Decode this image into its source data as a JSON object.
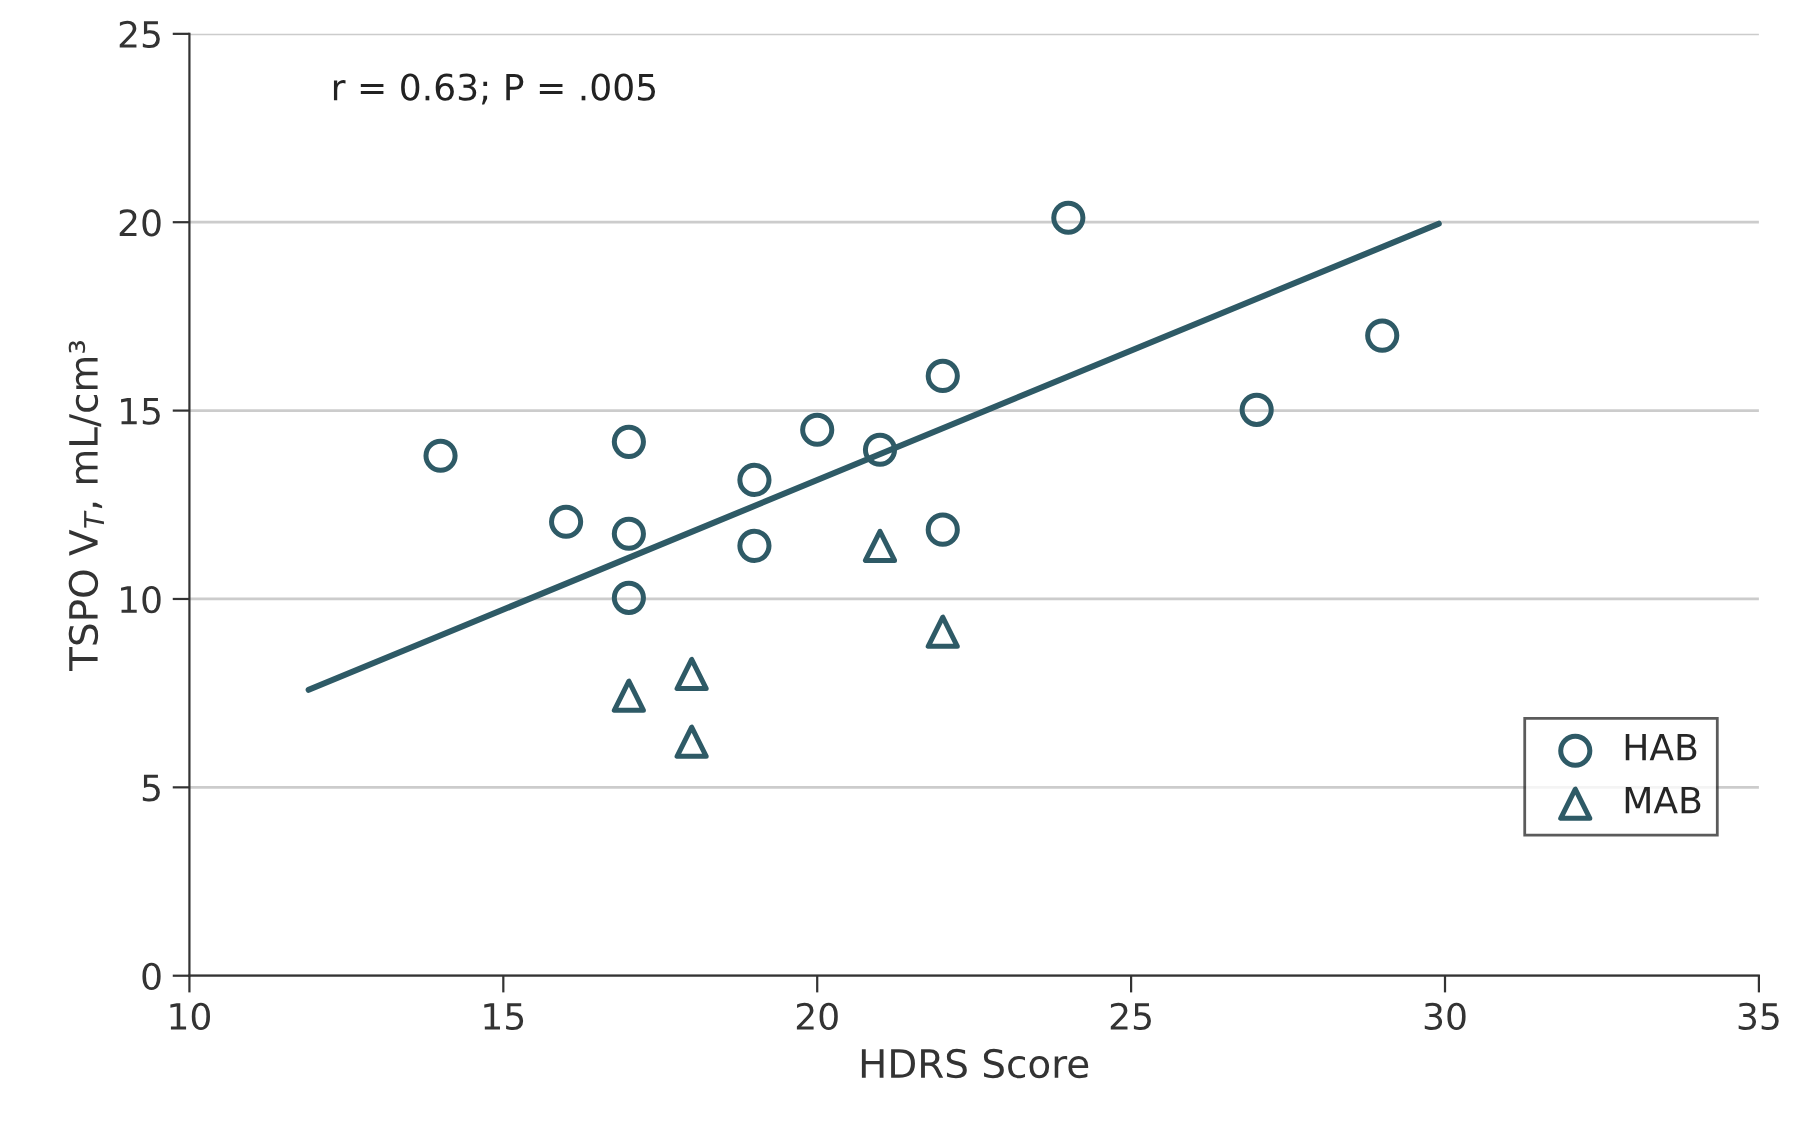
{
  "chart_data": {
    "type": "scatter",
    "xlabel": "HDRS Score",
    "ylabel": "TSPO V$_{T}$, mL/cm³",
    "xlim": [
      10,
      35
    ],
    "xticks": [
      10,
      15,
      20,
      25,
      30,
      35
    ],
    "ylim": [
      0,
      25
    ],
    "yticks": [
      0,
      5,
      10,
      15,
      20,
      25
    ],
    "grid": "y",
    "legend": "bottom right",
    "annotations": [
      {
        "text": "r = 0.63; P = .005"
      }
    ],
    "series": [
      {
        "name": "HAB",
        "marker": "circle",
        "color": "#2e5a66",
        "x": [
          14,
          16,
          17,
          17,
          17,
          19,
          19,
          20,
          21,
          22,
          22,
          24,
          27,
          29
        ],
        "values": [
          13.8,
          12.05,
          14.17,
          11.73,
          10.03,
          13.16,
          11.41,
          14.49,
          13.96,
          15.92,
          11.84,
          20.12,
          15.02,
          16.99
        ]
      },
      {
        "name": "MAB",
        "marker": "triangle",
        "color": "#2e5a66",
        "x": [
          17,
          18,
          18,
          21,
          22
        ],
        "values": [
          7.43,
          8.01,
          6.21,
          11.41,
          9.13
        ]
      },
      {
        "type": "line",
        "marker": "none",
        "color": "#2e5a66",
        "x": [
          11.9,
          29.9
        ],
        "values": [
          7.59,
          19.96
        ]
      }
    ]
  }
}
